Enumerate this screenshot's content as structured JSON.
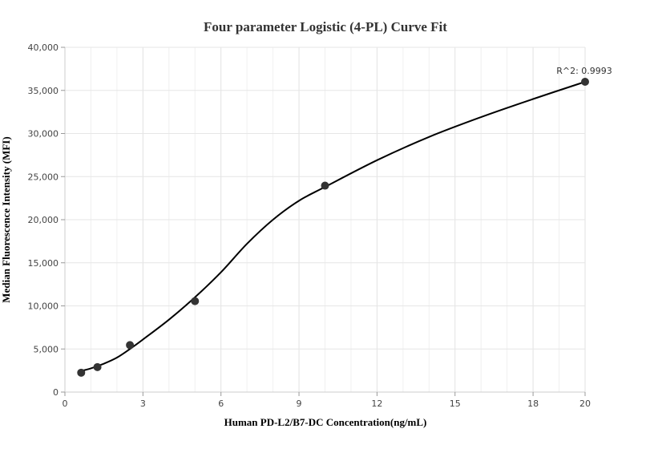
{
  "chart_data": {
    "type": "scatter",
    "title": "Four parameter Logistic (4-PL) Curve Fit",
    "xlabel": "Human PD-L2/B7-DC Concentration(ng/mL)",
    "ylabel": "Median Fluorescence Intensity (MFI)",
    "xlim": [
      0,
      20
    ],
    "ylim": [
      0,
      40000
    ],
    "x_ticks": [
      0,
      3,
      6,
      9,
      12,
      15,
      18,
      20
    ],
    "x_tick_labels": [
      "0",
      "3",
      "6",
      "9",
      "12",
      "15",
      "18",
      "20"
    ],
    "y_ticks": [
      0,
      5000,
      10000,
      15000,
      20000,
      25000,
      30000,
      35000,
      40000
    ],
    "y_tick_labels": [
      "0",
      "5,000",
      "10,000",
      "15,000",
      "20,000",
      "25,000",
      "30,000",
      "35,000",
      "40,000"
    ],
    "grid": true,
    "points": [
      {
        "x": 0.625,
        "y": 2250
      },
      {
        "x": 1.25,
        "y": 2900
      },
      {
        "x": 2.5,
        "y": 5450
      },
      {
        "x": 5,
        "y": 10550
      },
      {
        "x": 10,
        "y": 23950
      },
      {
        "x": 20,
        "y": 36000
      }
    ],
    "fit_curve": {
      "x": [
        0.625,
        1.0,
        1.5,
        2.0,
        2.5,
        3.0,
        4.0,
        5.0,
        6.0,
        7.0,
        8.0,
        9.0,
        10.0,
        12.0,
        14.0,
        16.0,
        18.0,
        20.0
      ],
      "y": [
        2450,
        2750,
        3300,
        4000,
        5000,
        6100,
        8400,
        11000,
        13900,
        17200,
        20000,
        22200,
        23800,
        26900,
        29600,
        31900,
        34000,
        36000
      ]
    },
    "annotation": {
      "text": "R^2: 0.9993",
      "x": 20,
      "y": 36000
    },
    "colors": {
      "points": "#333333",
      "curve": "#000000",
      "grid": "#e6e6e6",
      "axis": "#cccccc"
    }
  }
}
